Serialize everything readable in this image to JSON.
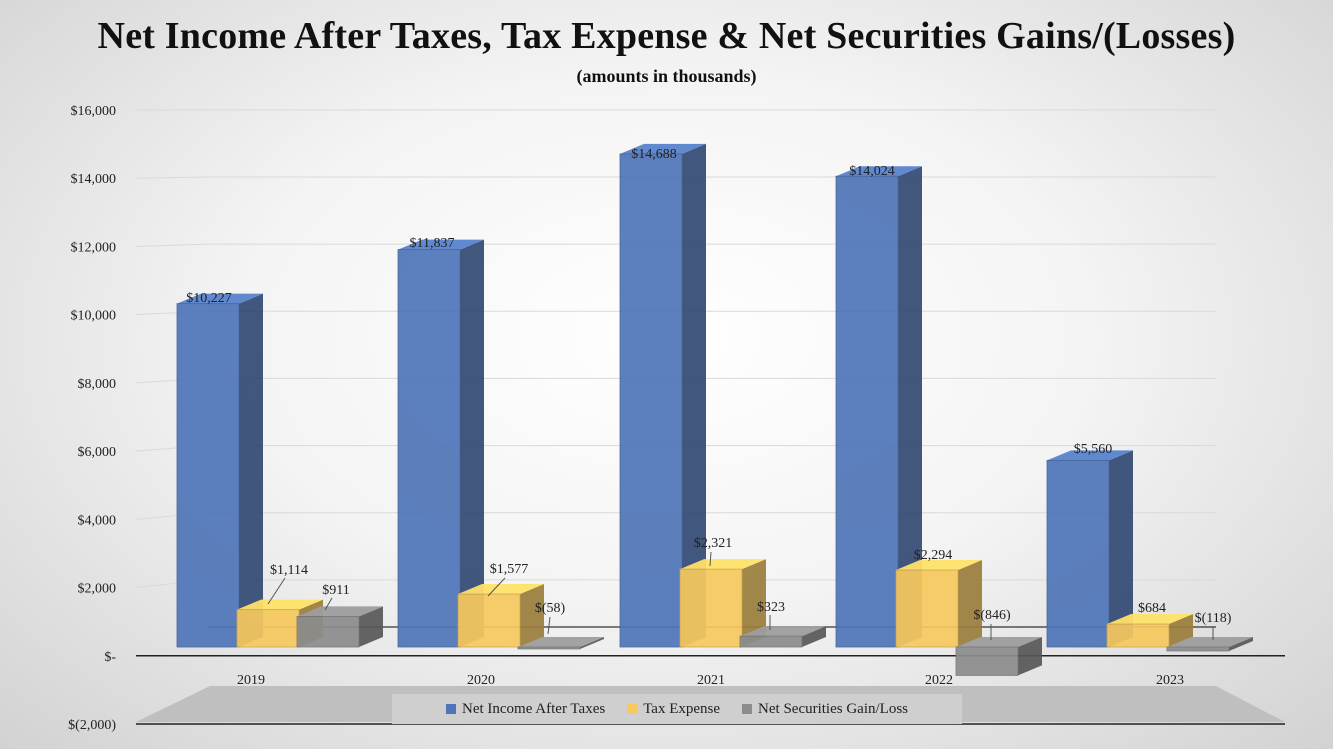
{
  "chart_data": {
    "type": "bar",
    "title": "Net Income After Taxes, Tax Expense & Net Securities Gains/(Losses)",
    "subtitle": "(amounts in thousands)",
    "categories": [
      "2019",
      "2020",
      "2021",
      "2022",
      "2023"
    ],
    "series": [
      {
        "name": "Net Income After Taxes",
        "color": "#4f75b8",
        "values": [
          10227,
          11837,
          14688,
          14024,
          5560
        ],
        "labels": [
          "$10,227",
          "$11,837",
          "$14,688",
          "$14,024",
          "$5,560"
        ]
      },
      {
        "name": "Tax Expense",
        "color": "#f7c95e",
        "values": [
          1114,
          1577,
          2321,
          2294,
          684
        ],
        "labels": [
          "$1,114",
          "$1,577",
          "$2,321",
          "$2,294",
          "$684"
        ]
      },
      {
        "name": "Net Securities Gain/Loss",
        "color": "#8c8c8c",
        "values": [
          911,
          -58,
          323,
          -846,
          -118
        ],
        "labels": [
          "$911",
          "$(58)",
          "$323",
          "$(846)",
          "$(118)"
        ]
      }
    ],
    "yticks": [
      -2000,
      0,
      2000,
      4000,
      6000,
      8000,
      10000,
      12000,
      14000,
      16000
    ],
    "ytick_labels": [
      "$(2,000)",
      "$-",
      "$2,000",
      "$4,000",
      "$6,000",
      "$8,000",
      "$10,000",
      "$12,000",
      "$14,000",
      "$16,000"
    ],
    "ylim": [
      -2000,
      16000
    ],
    "grid": true,
    "legend_position": "bottom"
  }
}
